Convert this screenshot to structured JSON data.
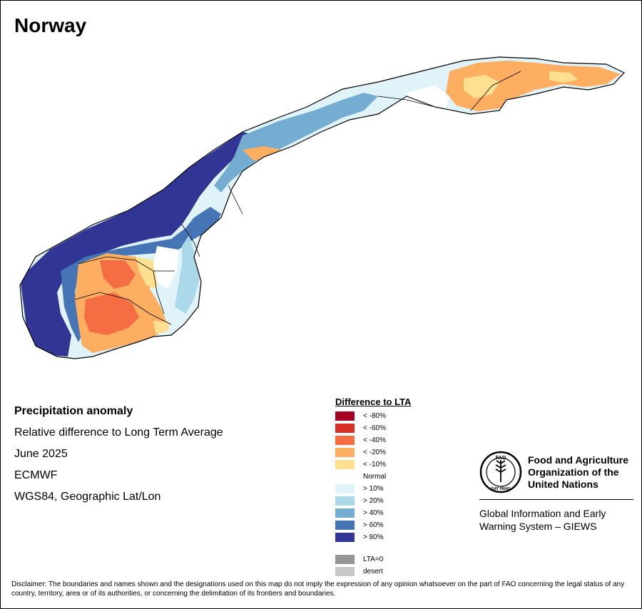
{
  "title": "Norway",
  "info": {
    "heading": "Precipitation anomaly",
    "line1": "Relative difference to Long Term Average",
    "line2": "June 2025",
    "line3": "ECMWF",
    "line4": "WGS84, Geographic Lat/Lon"
  },
  "legend": {
    "title": "Difference to LTA",
    "items": [
      {
        "label": "< -80%",
        "color": "#a50026"
      },
      {
        "label": "< -60%",
        "color": "#d73027"
      },
      {
        "label": "< -40%",
        "color": "#f46d43"
      },
      {
        "label": "< -20%",
        "color": "#fdae61"
      },
      {
        "label": "< -10%",
        "color": "#fee090"
      },
      {
        "label": "Normal",
        "color": "#ffffff"
      },
      {
        "label": "> 10%",
        "color": "#e0f3f8"
      },
      {
        "label": "> 20%",
        "color": "#abd9e9"
      },
      {
        "label": "> 40%",
        "color": "#74add1"
      },
      {
        "label": "> 60%",
        "color": "#4575b4"
      },
      {
        "label": "> 80%",
        "color": "#313695"
      }
    ],
    "extra": [
      {
        "label": "LTA=0",
        "color": "#969696"
      },
      {
        "label": "desert",
        "color": "#c8c8c8"
      }
    ]
  },
  "fao": {
    "line1": "Food and Agriculture",
    "line2": "Organization of the",
    "line3": "United Nations",
    "logo_letters": "FAO",
    "logo_motto": "FIAT PANIS",
    "giews1": "Global Information and Early",
    "giews2": "Warning System – GIEWS"
  },
  "disclaimer": "Disclaimer: The boundaries and names shown and the designations used on this map do not imply the expression of any opinion whatsoever on the part of FAO concerning the legal status of any country, territory, area or of its authorities, or concerning the delimitation of its frontiers and boundaries."
}
